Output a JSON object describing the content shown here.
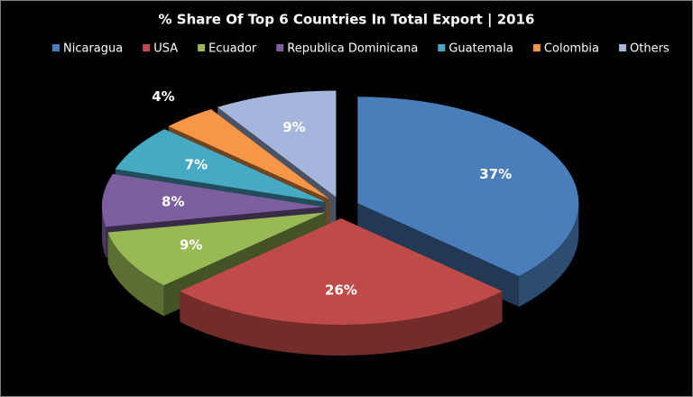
{
  "chart_data": {
    "type": "pie",
    "title": "% Share Of Top 6 Countries In Total Export | 2016",
    "categories": [
      "Nicaragua",
      "USA",
      "Ecuador",
      "Republica Dominicana",
      "Guatemala",
      "Colombia",
      "Others"
    ],
    "values": [
      37,
      26,
      9,
      8,
      7,
      4,
      9
    ],
    "value_labels": [
      "37%",
      "26%",
      "9%",
      "8%",
      "7%",
      "4%",
      "9%"
    ],
    "colors": [
      "#4a7ebb",
      "#be4b48",
      "#98b954",
      "#7d5fa0",
      "#46aac5",
      "#f79646",
      "#a5b6dc"
    ],
    "legend": "top"
  }
}
